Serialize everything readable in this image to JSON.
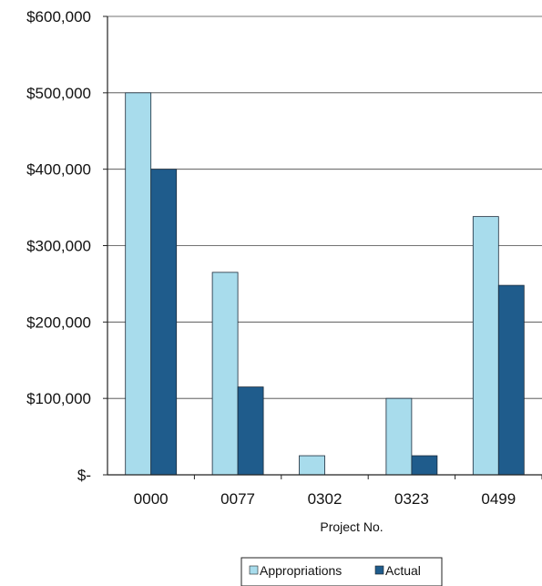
{
  "chart_data": {
    "type": "bar",
    "title": "",
    "xlabel": "Project No.",
    "ylabel": "",
    "categories": [
      "0000",
      "0077",
      "0302",
      "0323",
      "0499"
    ],
    "series": [
      {
        "name": "Appropriations",
        "color": "#a8dcec",
        "values": [
          500000,
          265000,
          25000,
          100000,
          338000
        ]
      },
      {
        "name": "Actual",
        "color": "#1f5c8c",
        "values": [
          400000,
          115000,
          0,
          25000,
          248000
        ]
      }
    ],
    "ylim": [
      0,
      600000
    ],
    "yticks": [
      0,
      100000,
      200000,
      300000,
      400000,
      500000,
      600000
    ],
    "ytick_labels": [
      "$-",
      "$100,000",
      "$200,000",
      "$300,000",
      "$400,000",
      "$500,000",
      "$600,000"
    ],
    "grid": true,
    "legend_position": "bottom"
  }
}
